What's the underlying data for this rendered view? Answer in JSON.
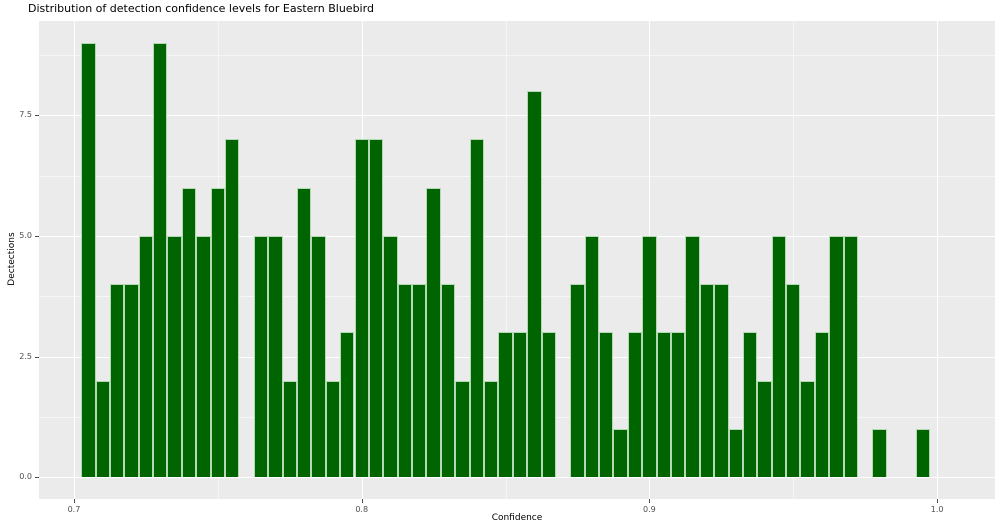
{
  "title": "Distribution of detection confidence levels for Eastern Bluebird",
  "chart_data": {
    "type": "bar",
    "subtype": "histogram",
    "title": "Distribution of detection confidence levels for Eastern Bluebird",
    "xlabel": "Confidence",
    "ylabel": "Dectections",
    "bin_width": 0.005,
    "bin_centers": [
      0.705,
      0.71,
      0.715,
      0.72,
      0.725,
      0.73,
      0.735,
      0.74,
      0.745,
      0.75,
      0.755,
      0.76,
      0.765,
      0.77,
      0.775,
      0.78,
      0.785,
      0.79,
      0.795,
      0.8,
      0.805,
      0.81,
      0.815,
      0.82,
      0.825,
      0.83,
      0.835,
      0.84,
      0.845,
      0.85,
      0.855,
      0.86,
      0.865,
      0.87,
      0.875,
      0.88,
      0.885,
      0.89,
      0.895,
      0.9,
      0.905,
      0.91,
      0.915,
      0.92,
      0.925,
      0.93,
      0.935,
      0.94,
      0.945,
      0.95,
      0.955,
      0.96,
      0.965,
      0.97,
      0.975,
      0.98,
      0.985,
      0.99,
      0.995
    ],
    "counts": [
      9,
      2,
      4,
      4,
      5,
      9,
      5,
      6,
      5,
      6,
      7,
      0,
      5,
      5,
      2,
      6,
      5,
      2,
      3,
      7,
      7,
      5,
      4,
      4,
      6,
      4,
      2,
      7,
      2,
      3,
      3,
      8,
      3,
      0,
      4,
      5,
      3,
      1,
      3,
      5,
      3,
      3,
      5,
      4,
      4,
      1,
      3,
      2,
      5,
      4,
      2,
      3,
      5,
      5,
      0,
      1,
      0,
      0,
      1
    ],
    "x_tick_labels": [
      "0.7",
      "0.8",
      "0.9",
      "1.0"
    ],
    "x_tick_values": [
      0.7,
      0.8,
      0.9,
      1.0
    ],
    "x_minor_values": [
      0.75,
      0.85,
      0.95
    ],
    "y_tick_labels": [
      "0.0",
      "2.5",
      "5.0",
      "7.5"
    ],
    "y_tick_values": [
      0.0,
      2.5,
      5.0,
      7.5
    ],
    "y_minor_values": [
      1.25,
      3.75,
      6.25,
      8.75
    ],
    "xlim": [
      0.68785,
      1.0201
    ],
    "ylim": [
      -0.45,
      9.45
    ],
    "grid": "on",
    "legend": "none",
    "colors": {
      "bar_fill": "#006400",
      "bar_edge": "#b5d9b5",
      "panel_bg": "#EBEBEB",
      "grid_major": "#FFFFFF",
      "grid_minor": "#F7F7F7",
      "tick_label": "#4D4D4D",
      "text": "#000000",
      "background": "#FFFFFF"
    }
  }
}
